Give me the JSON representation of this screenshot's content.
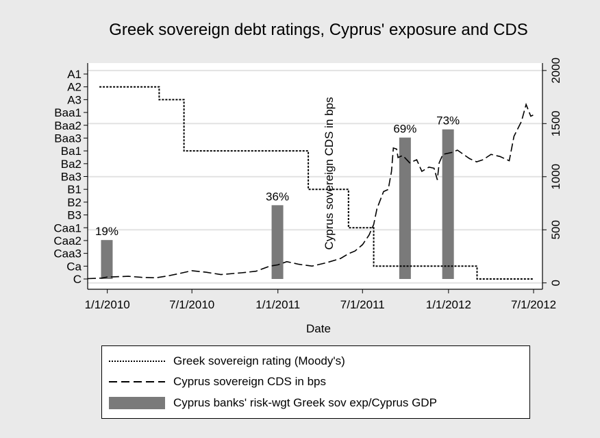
{
  "chart_data": {
    "type": "line",
    "title": "Greek sovereign debt ratings, Cyprus' exposure and CDS",
    "xlabel": "Date",
    "y_left_label": "",
    "y_right_label": "Cyprus sovereign CDS in bps",
    "x_ticks": [
      "1/1/2010",
      "7/1/2010",
      "1/1/2011",
      "7/1/2011",
      "1/1/2012",
      "7/1/2012"
    ],
    "x_range": [
      "2009-11-20",
      "2012-07-20"
    ],
    "rating_scale": [
      "C",
      "Ca",
      "Caa3",
      "Caa2",
      "Caa1",
      "B3",
      "B2",
      "B1",
      "Ba3",
      "Ba2",
      "Ba1",
      "Baa3",
      "Baa2",
      "Baa1",
      "A3",
      "A2",
      "A1"
    ],
    "y_right_ticks": [
      0,
      500,
      1000,
      1500,
      2000
    ],
    "y_right_range": [
      -60,
      2070
    ],
    "grid": true,
    "legend_position": "bottom",
    "series": [
      {
        "name": "Greek sovereign rating (Moody's)",
        "style": "dotted",
        "axis": "left",
        "points": [
          [
            "2009-12-15",
            "A2"
          ],
          [
            "2010-04-22",
            "A2"
          ],
          [
            "2010-04-22",
            "A3"
          ],
          [
            "2010-06-14",
            "A3"
          ],
          [
            "2010-06-14",
            "Ba1"
          ],
          [
            "2011-03-07",
            "Ba1"
          ],
          [
            "2011-03-07",
            "B1"
          ],
          [
            "2011-06-01",
            "B1"
          ],
          [
            "2011-06-01",
            "Caa1"
          ],
          [
            "2011-07-25",
            "Caa1"
          ],
          [
            "2011-07-25",
            "Ca"
          ],
          [
            "2012-03-02",
            "Ca"
          ],
          [
            "2012-03-02",
            "C"
          ],
          [
            "2012-07-01",
            "C"
          ]
        ]
      },
      {
        "name": "Cyprus sovereign CDS in bps",
        "style": "dashed",
        "axis": "right",
        "points": [
          [
            "2009-11-20",
            40
          ],
          [
            "2009-12-20",
            45
          ],
          [
            "2010-01-01",
            55
          ],
          [
            "2010-02-15",
            62
          ],
          [
            "2010-03-15",
            52
          ],
          [
            "2010-04-15",
            48
          ],
          [
            "2010-05-10",
            65
          ],
          [
            "2010-06-01",
            85
          ],
          [
            "2010-07-01",
            115
          ],
          [
            "2010-08-01",
            100
          ],
          [
            "2010-09-01",
            78
          ],
          [
            "2010-10-15",
            95
          ],
          [
            "2010-11-15",
            110
          ],
          [
            "2010-12-15",
            158
          ],
          [
            "2011-01-01",
            170
          ],
          [
            "2011-01-20",
            200
          ],
          [
            "2011-02-15",
            175
          ],
          [
            "2011-03-15",
            158
          ],
          [
            "2011-04-15",
            190
          ],
          [
            "2011-05-15",
            230
          ],
          [
            "2011-06-01",
            275
          ],
          [
            "2011-06-15",
            300
          ],
          [
            "2011-07-01",
            360
          ],
          [
            "2011-07-15",
            450
          ],
          [
            "2011-07-25",
            550
          ],
          [
            "2011-08-01",
            700
          ],
          [
            "2011-08-15",
            860
          ],
          [
            "2011-08-25",
            880
          ],
          [
            "2011-09-01",
            1050
          ],
          [
            "2011-09-05",
            1270
          ],
          [
            "2011-09-12",
            1260
          ],
          [
            "2011-09-15",
            1180
          ],
          [
            "2011-09-25",
            1200
          ],
          [
            "2011-10-10",
            1130
          ],
          [
            "2011-10-25",
            1160
          ],
          [
            "2011-11-05",
            1050
          ],
          [
            "2011-11-20",
            1090
          ],
          [
            "2011-12-01",
            1080
          ],
          [
            "2011-12-08",
            970
          ],
          [
            "2011-12-12",
            1130
          ],
          [
            "2011-12-20",
            1210
          ],
          [
            "2012-01-10",
            1230
          ],
          [
            "2012-01-20",
            1250
          ],
          [
            "2012-02-15",
            1170
          ],
          [
            "2012-03-01",
            1140
          ],
          [
            "2012-03-15",
            1160
          ],
          [
            "2012-04-01",
            1210
          ],
          [
            "2012-04-20",
            1190
          ],
          [
            "2012-05-10",
            1150
          ],
          [
            "2012-05-20",
            1380
          ],
          [
            "2012-06-05",
            1520
          ],
          [
            "2012-06-15",
            1680
          ],
          [
            "2012-06-25",
            1570
          ],
          [
            "2012-06-30",
            1580
          ]
        ]
      },
      {
        "name": "Cyprus banks' risk-wgt Greek sov exp/Cyprus GDP",
        "style": "bar",
        "axis": "left",
        "bars": [
          {
            "date": "2009-12-31",
            "value": 19,
            "label": "19%"
          },
          {
            "date": "2010-12-31",
            "value": 36,
            "label": "36%"
          },
          {
            "date": "2011-09-30",
            "value": 69,
            "label": "69%"
          },
          {
            "date": "2011-12-31",
            "value": 73,
            "label": "73%"
          }
        ]
      }
    ]
  }
}
